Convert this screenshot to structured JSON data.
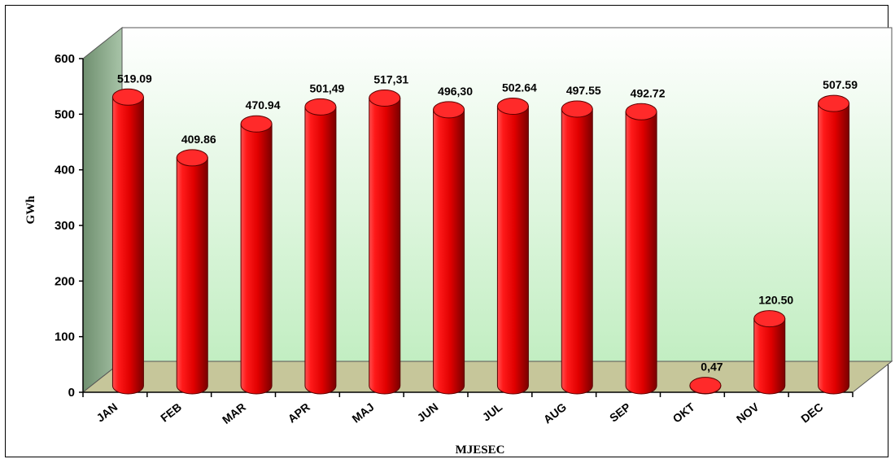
{
  "chart_data": {
    "type": "bar",
    "style": "3d-cylinder",
    "categories": [
      "JAN",
      "FEB",
      "MAR",
      "APR",
      "MAJ",
      "JUN",
      "JUL",
      "AUG",
      "SEP",
      "OKT",
      "NOV",
      "DEC"
    ],
    "values": [
      519.09,
      409.86,
      470.94,
      501.49,
      517.31,
      496.3,
      502.64,
      497.55,
      492.72,
      0.47,
      120.5,
      507.59
    ],
    "value_labels": [
      "519.09",
      "409.86",
      "470.94",
      "501,49",
      "517,31",
      "496,30",
      "502.64",
      "497.55",
      "492.72",
      "0,47",
      "120.50",
      "507.59"
    ],
    "xlabel": "MJESEC",
    "ylabel": "GWh",
    "ylim": [
      0,
      600
    ],
    "yticks": [
      "0",
      "100",
      "200",
      "300",
      "400",
      "500",
      "600"
    ],
    "grid": false,
    "legend": "none",
    "colors": {
      "bar": "#e60000",
      "bar_dark": "#8a0000",
      "bar_highlight": "#ff6a6a",
      "back_wall_top": "#ffffff",
      "back_wall_bottom": "#c2eec2",
      "side_wall": "#7f9e7f",
      "floor": "#c6c69a"
    }
  }
}
